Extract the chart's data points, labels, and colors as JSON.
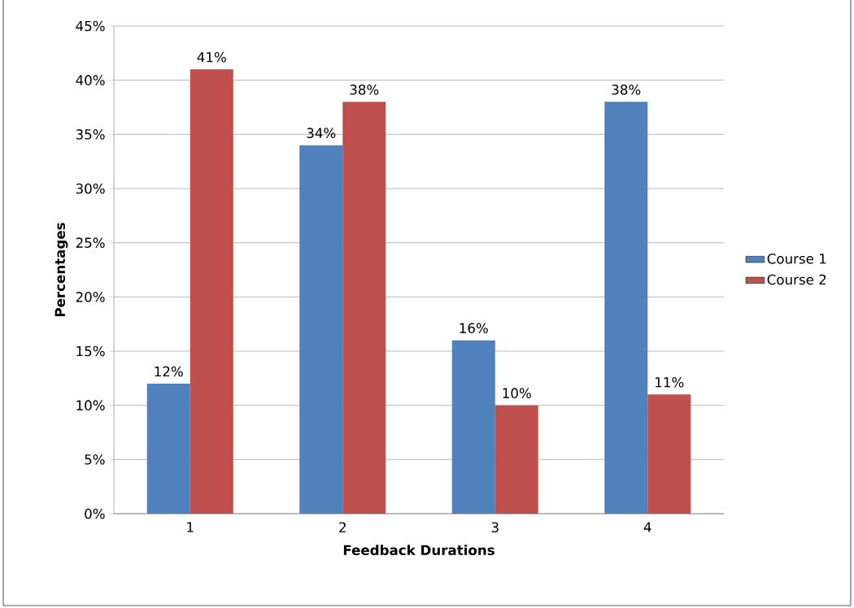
{
  "chart_data": {
    "type": "bar",
    "xlabel": "Feedback Durations",
    "ylabel": "Percentages",
    "categories": [
      "1",
      "2",
      "3",
      "4"
    ],
    "series": [
      {
        "name": "Course 1",
        "color": "#4f81bd",
        "values": [
          12,
          34,
          16,
          38
        ],
        "value_labels": [
          "12%",
          "34%",
          "16%",
          "38%"
        ]
      },
      {
        "name": "Course 2",
        "color": "#c0504d",
        "values": [
          41,
          38,
          10,
          11
        ],
        "value_labels": [
          "41%",
          "38%",
          "10%",
          "11%"
        ]
      }
    ],
    "ylim": [
      0,
      45
    ],
    "yticks": [
      {
        "value": 0,
        "label": "0%"
      },
      {
        "value": 5,
        "label": "5%"
      },
      {
        "value": 10,
        "label": "10%"
      },
      {
        "value": 15,
        "label": "15%"
      },
      {
        "value": 20,
        "label": "20%"
      },
      {
        "value": 25,
        "label": "25%"
      },
      {
        "value": 30,
        "label": "30%"
      },
      {
        "value": 35,
        "label": "35%"
      },
      {
        "value": 40,
        "label": "40%"
      },
      {
        "value": 45,
        "label": "45%"
      }
    ],
    "grid": "y",
    "legend": "right"
  }
}
